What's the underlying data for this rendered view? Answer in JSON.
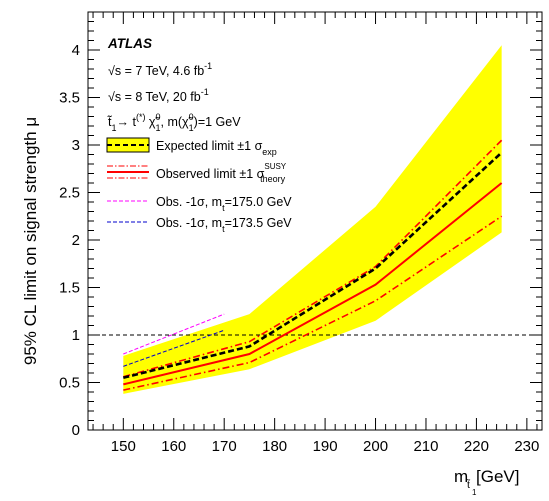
{
  "chart_data": {
    "type": "line",
    "xlabel": "m [GeV]",
    "ylabel": "95% CL limit on signal strength μ",
    "xlim": [
      143,
      233
    ],
    "ylim": [
      0,
      4.4
    ],
    "x_ticks": [
      150,
      160,
      170,
      180,
      190,
      200,
      210,
      220,
      230
    ],
    "y_ticks": [
      0,
      0.5,
      1,
      1.5,
      2,
      2.5,
      3,
      3.5,
      4
    ],
    "reference_line": 1,
    "grid": false,
    "legend_position": "top-left",
    "experiment_label": "ATLAS",
    "annotations": [
      "√s = 7 TeV, 4.6 fb⁻¹",
      "√s = 8 TeV, 20 fb⁻¹",
      "t̃₁→ t⁽*⁾ χ̃₁⁰, m(χ̃₁⁰)=1 GeV"
    ],
    "series": [
      {
        "name": "Expected limit ±1 σexp",
        "style": "dashed",
        "color": "#000000",
        "band_color": "#ffff00",
        "x": [
          150,
          175,
          200,
          225
        ],
        "y": [
          0.55,
          0.88,
          1.7,
          2.92
        ],
        "band_low": [
          0.38,
          0.64,
          1.15,
          2.08
        ],
        "band_high": [
          0.78,
          1.22,
          2.35,
          4.05
        ]
      },
      {
        "name": "Observed limit ±1 σtheorySUSY",
        "style": "solid",
        "color": "#ff0000",
        "x": [
          150,
          175,
          200,
          225
        ],
        "y": [
          0.48,
          0.8,
          1.53,
          2.6
        ],
        "theory_low": [
          0.42,
          0.71,
          1.36,
          2.25
        ],
        "theory_high": [
          0.56,
          0.93,
          1.72,
          3.05
        ]
      },
      {
        "name": "Obs. -1σ, mt=175.0 GeV",
        "style": "dashed",
        "color": "#ff00ff",
        "x": [
          150,
          170
        ],
        "y": [
          0.8,
          1.22
        ]
      },
      {
        "name": "Obs. -1σ, mt=173.5 GeV",
        "style": "dashed",
        "color": "#0000cc",
        "x": [
          150,
          170
        ],
        "y": [
          0.67,
          1.05
        ]
      }
    ]
  }
}
